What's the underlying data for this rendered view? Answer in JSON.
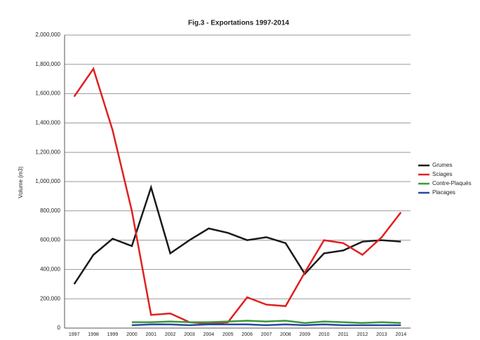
{
  "chart_data": {
    "type": "line",
    "title": "Fig.3 - Exportations 1997-2014",
    "y_label": "Volume (m3)",
    "categories": [
      "1997",
      "1998",
      "1999",
      "2000",
      "2001",
      "2002",
      "2003",
      "2004",
      "2005",
      "2006",
      "2007",
      "2008",
      "2009",
      "2010",
      "2011",
      "2012",
      "2013",
      "2014"
    ],
    "series": [
      {
        "name": "Grumes",
        "color": "#1a1a1a",
        "values": [
          300000,
          500000,
          610000,
          560000,
          960000,
          510000,
          600000,
          680000,
          650000,
          600000,
          620000,
          580000,
          370000,
          510000,
          530000,
          590000,
          600000,
          590000
        ]
      },
      {
        "name": "Sciages",
        "color": "#e02020",
        "values": [
          1580000,
          1770000,
          1350000,
          800000,
          90000,
          100000,
          40000,
          30000,
          40000,
          210000,
          160000,
          150000,
          380000,
          600000,
          580000,
          500000,
          620000,
          790000
        ]
      },
      {
        "name": "Contre-Plaqués",
        "color": "#3a9a3a",
        "values": [
          null,
          null,
          null,
          40000,
          40000,
          45000,
          40000,
          40000,
          45000,
          50000,
          45000,
          50000,
          35000,
          45000,
          40000,
          35000,
          40000,
          35000
        ]
      },
      {
        "name": "Placages",
        "color": "#2a4aa0",
        "values": [
          null,
          null,
          null,
          20000,
          25000,
          25000,
          20000,
          25000,
          25000,
          25000,
          20000,
          25000,
          20000,
          25000,
          20000,
          20000,
          20000,
          20000
        ]
      }
    ],
    "ylim": [
      0,
      2000000
    ],
    "yticks": [
      0,
      {
        "value": 200000,
        "label": "200,000"
      },
      {
        "value": 400000,
        "label": "400,000"
      },
      {
        "value": 600000,
        "label": "600,000"
      },
      {
        "value": 800000,
        "label": "800,000"
      },
      {
        "value": 1000000,
        "label": "1,000,000"
      },
      {
        "value": 1200000,
        "label": "1,200,000"
      },
      {
        "value": 1400000,
        "label": "1,400,000"
      },
      {
        "value": 1600000,
        "label": "1,600,000"
      },
      {
        "value": 1800000,
        "label": "1,800,000"
      },
      {
        "value": 2000000,
        "label": "2,000,000"
      }
    ],
    "grid": true
  }
}
